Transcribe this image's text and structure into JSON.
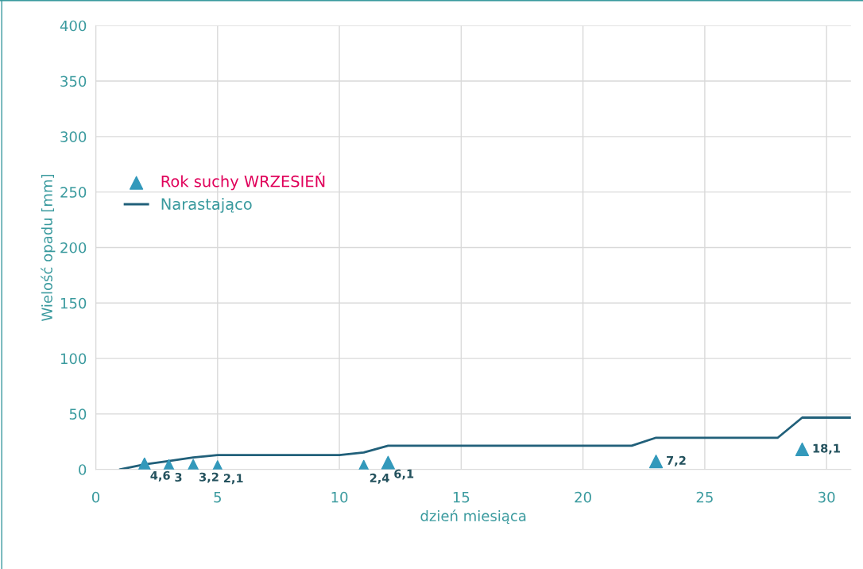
{
  "chart_data": {
    "type": "scatter",
    "xlabel": "dzień miesiąca",
    "ylabel": "Wielość opadu [mm]",
    "xlim": [
      0,
      31
    ],
    "xticks": [
      0,
      5,
      10,
      15,
      20,
      25,
      30
    ],
    "ylim": [
      0,
      400
    ],
    "yticks": [
      0,
      50,
      100,
      150,
      200,
      250,
      300,
      350,
      400
    ],
    "grid": true,
    "legend": "top left",
    "series": [
      {
        "name": "Rok suchy WRZESIEŃ",
        "marker": "triangle",
        "color": "#3399bb",
        "x": [
          2,
          3,
          4,
          5,
          11,
          12,
          23,
          29
        ],
        "values": [
          4.6,
          3,
          3.2,
          2.1,
          2.4,
          6.1,
          7.2,
          18.1
        ],
        "value_labels": [
          "4,6",
          "3",
          "3,2",
          "2,1",
          "2,4",
          "6,1",
          "7,2",
          "18,1"
        ]
      },
      {
        "name": "Narastająco",
        "type": "line",
        "color": "#21607a",
        "x": [
          1,
          2,
          3,
          4,
          5,
          10,
          11,
          12,
          22,
          23,
          28,
          29,
          31
        ],
        "values": [
          0,
          4.6,
          7.6,
          10.8,
          12.9,
          12.9,
          15.3,
          21.4,
          21.4,
          28.6,
          28.6,
          46.7,
          46.7
        ]
      }
    ]
  }
}
